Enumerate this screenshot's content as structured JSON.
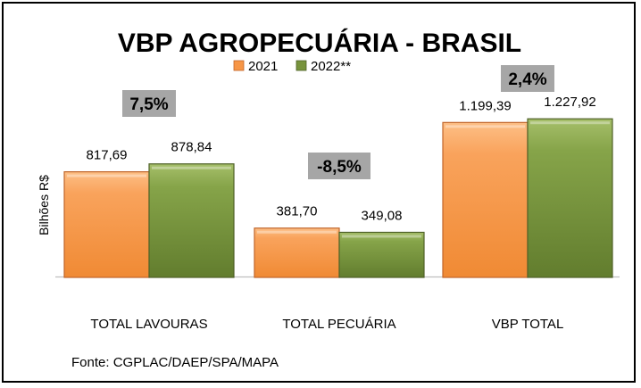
{
  "chart_data": {
    "type": "bar",
    "title": "VBP AGROPECUÁRIA - BRASIL",
    "ylabel": "Bilhões R$",
    "xlabel": "",
    "categories": [
      "TOTAL LAVOURAS",
      "TOTAL PECUÁRIA",
      "VBP TOTAL"
    ],
    "series": [
      {
        "name": "2021",
        "values": [
          817.69,
          381.7,
          1199.39
        ],
        "labels": [
          "817,69",
          "381,70",
          "1.199,39"
        ],
        "color": "#F79646"
      },
      {
        "name": "2022**",
        "values": [
          878.84,
          349.08,
          1227.92
        ],
        "labels": [
          "878,84",
          "349,08",
          "1.227,92"
        ],
        "color": "#77933C"
      }
    ],
    "changes": [
      "7,5%",
      "-8,5%",
      "2,4%"
    ],
    "ylim": [
      0,
      1300
    ],
    "grid": false,
    "legend": "top-center",
    "source": "Fonte: CGPLAC/DAEP/SPA/MAPA"
  }
}
